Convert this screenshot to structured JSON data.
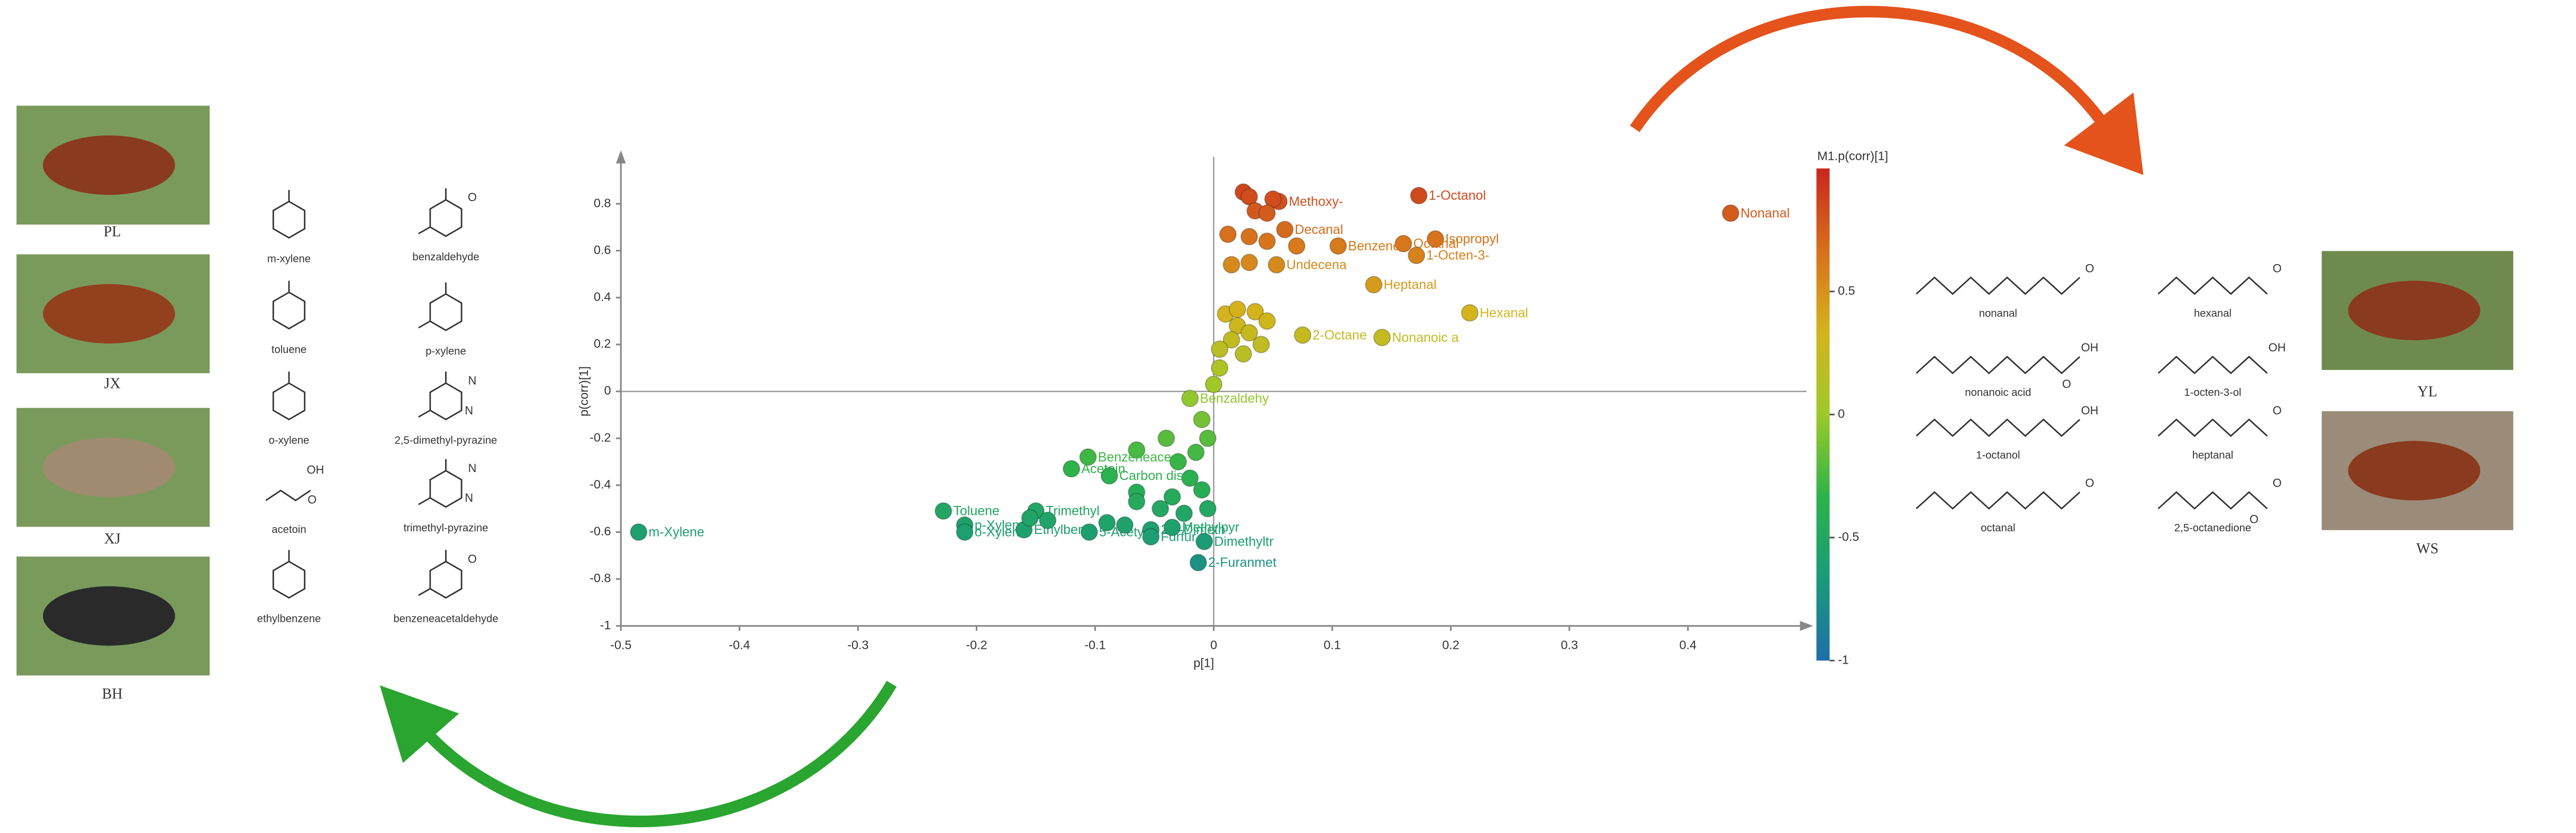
{
  "left_photos": [
    "PL",
    "JX",
    "XJ",
    "BH"
  ],
  "right_photos": [
    "YL",
    "WS"
  ],
  "left_compounds": [
    {
      "name": "m-xylene"
    },
    {
      "name": "benzaldehyde",
      "atoms": [
        "O"
      ]
    },
    {
      "name": "toluene"
    },
    {
      "name": "p-xylene"
    },
    {
      "name": "o-xylene"
    },
    {
      "name": "2,5-dimethyl-pyrazine",
      "atoms": [
        "N",
        "N"
      ]
    },
    {
      "name": "acetoin",
      "atoms": [
        "OH",
        "O"
      ]
    },
    {
      "name": "trimethyl-pyrazine",
      "atoms": [
        "N",
        "N"
      ]
    },
    {
      "name": "ethylbenzene"
    },
    {
      "name": "benzeneacetaldehyde",
      "atoms": [
        "O"
      ]
    }
  ],
  "right_compounds": [
    {
      "name": "nonanal",
      "atoms": [
        "O"
      ]
    },
    {
      "name": "hexanal",
      "atoms": [
        "O"
      ]
    },
    {
      "name": "nonanoic acid",
      "atoms": [
        "OH",
        "O"
      ]
    },
    {
      "name": "1-octen-3-ol",
      "atoms": [
        "OH"
      ]
    },
    {
      "name": "1-octanol",
      "atoms": [
        "OH"
      ]
    },
    {
      "name": "heptanal",
      "atoms": [
        "O"
      ]
    },
    {
      "name": "octanal",
      "atoms": [
        "O"
      ]
    },
    {
      "name": "2,5-octanedione",
      "atoms": [
        "O",
        "O"
      ]
    }
  ],
  "chart_data": {
    "type": "scatter",
    "xlabel": "p[1]",
    "ylabel": "p(corr)[1]",
    "xlim": [
      -0.5,
      0.5
    ],
    "ylim": [
      -1,
      1
    ],
    "xticks": [
      -0.5,
      -0.4,
      -0.3,
      -0.2,
      -0.1,
      0,
      0.1,
      0.2,
      0.3,
      0.4
    ],
    "yticks": [
      -1,
      -0.8,
      -0.6,
      -0.4,
      -0.2,
      0,
      0.2,
      0.4,
      0.6,
      0.8
    ],
    "colorbar": {
      "title": "M1.p(corr)[1]",
      "lim": [
        -1,
        1
      ],
      "ticks": [
        0.5,
        0,
        -0.5,
        -1
      ],
      "colors": [
        "#1f6fa8",
        "#1a9a7a",
        "#2db34a",
        "#9cc92a",
        "#d4b41c",
        "#d7701c",
        "#c8261e"
      ]
    },
    "labels": [
      "Nonanal",
      "1-Octanol",
      "Isopropyl",
      "Octanal",
      "1-Octen-3-",
      "Heptanal",
      "Hexanal",
      "Nonanoic a",
      "Methoxy-",
      "Decanal",
      "Benzene",
      "Undecena",
      "2-Octane",
      null,
      null,
      null,
      null,
      null,
      null,
      null,
      null,
      null,
      null,
      null,
      null,
      null,
      null,
      null,
      null,
      null,
      null,
      null,
      null,
      null,
      null,
      null,
      "Benzaldehy",
      null,
      null,
      null,
      null,
      null,
      null,
      null,
      null,
      null,
      null,
      null,
      null,
      null,
      null,
      "Toluene",
      "p-Xylene",
      "o-Xylene",
      "Trimethyl",
      "Ethylben",
      "Benzeneace",
      "Acetoin",
      "Carbon dis",
      "5-Acetyl",
      "2,5-Dimeth",
      "Furfur",
      "Methylpyr",
      "Dimethyltr",
      "2-Furanmet",
      "m-Xylene",
      null,
      null,
      null,
      null
    ],
    "x": [
      0.436,
      0.173,
      0.187,
      0.16,
      0.171,
      0.135,
      0.216,
      0.142,
      0.055,
      0.06,
      0.105,
      0.053,
      0.075,
      0.025,
      0.03,
      0.05,
      0.035,
      0.045,
      0.012,
      0.03,
      0.045,
      0.07,
      0.015,
      0.03,
      0.01,
      0.02,
      0.035,
      0.045,
      0.02,
      0.03,
      0.015,
      0.04,
      0.005,
      0.025,
      0.005,
      0,
      -0.02,
      -0.01,
      -0.005,
      -0.015,
      -0.04,
      -0.065,
      -0.03,
      -0.02,
      -0.01,
      -0.035,
      -0.065,
      -0.065,
      -0.045,
      -0.025,
      -0.005,
      -0.228,
      -0.21,
      -0.21,
      -0.15,
      -0.16,
      -0.106,
      -0.12,
      -0.088,
      -0.105,
      -0.053,
      -0.053,
      -0.035,
      -0.008,
      -0.013,
      -0.485,
      -0.155,
      -0.14,
      -0.09,
      -0.075
    ],
    "y": [
      0.76,
      0.835,
      0.65,
      0.63,
      0.58,
      0.455,
      0.335,
      0.23,
      0.81,
      0.69,
      0.62,
      0.54,
      0.24,
      0.85,
      0.83,
      0.82,
      0.77,
      0.76,
      0.67,
      0.66,
      0.64,
      0.62,
      0.54,
      0.55,
      0.33,
      0.35,
      0.34,
      0.3,
      0.28,
      0.25,
      0.22,
      0.2,
      0.18,
      0.16,
      0.1,
      0.03,
      -0.03,
      -0.12,
      -0.2,
      -0.26,
      -0.2,
      -0.25,
      -0.3,
      -0.37,
      -0.42,
      -0.45,
      -0.43,
      -0.47,
      -0.5,
      -0.52,
      -0.5,
      -0.51,
      -0.57,
      -0.6,
      -0.51,
      -0.59,
      -0.28,
      -0.33,
      -0.36,
      -0.6,
      -0.59,
      -0.62,
      -0.58,
      -0.64,
      -0.73,
      -0.6,
      -0.54,
      -0.55,
      -0.56,
      -0.57
    ]
  }
}
